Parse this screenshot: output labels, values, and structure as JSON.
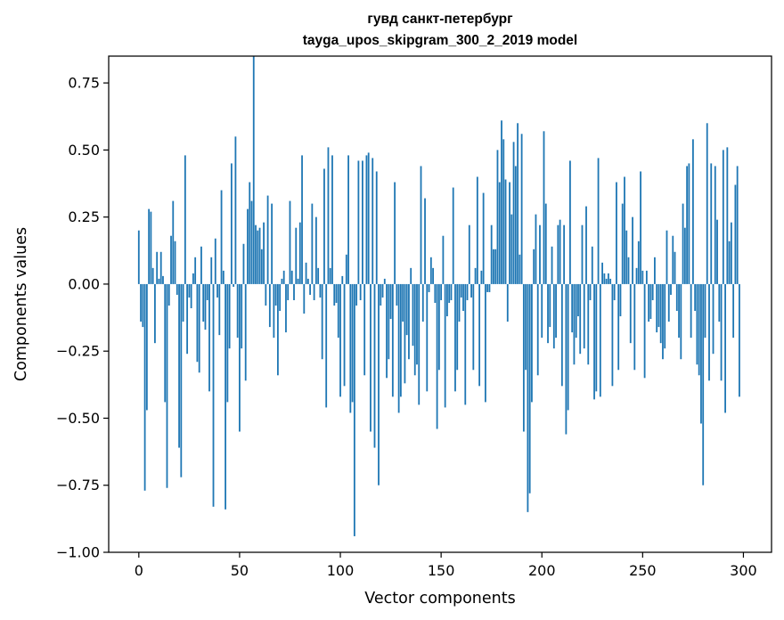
{
  "chart_data": {
    "type": "bar",
    "title_line1": "гувд санкт-петербург",
    "title_line2": "tayga_upos_skipgram_300_2_2019 model",
    "xlabel": "Vector components",
    "ylabel": "Components values",
    "xlim": [
      -14.95,
      313.95
    ],
    "ylim": [
      -1.0,
      0.85
    ],
    "x_ticks": [
      0,
      50,
      100,
      150,
      200,
      250,
      300
    ],
    "x_tick_labels": [
      "0",
      "50",
      "100",
      "150",
      "200",
      "250",
      "300"
    ],
    "y_ticks": [
      0.75,
      0.5,
      0.25,
      0.0,
      -0.25,
      -0.5,
      -0.75,
      -1.0
    ],
    "y_tick_labels": [
      "0.75",
      "0.50",
      "0.25",
      "0.00",
      "−0.25",
      "−0.50",
      "−0.75",
      "−1.00"
    ],
    "bar_color": "#1f77b4",
    "grid": false,
    "values": [
      0.2,
      -0.14,
      -0.16,
      -0.77,
      -0.47,
      0.28,
      0.27,
      0.06,
      -0.22,
      0.12,
      0.02,
      0.12,
      0.03,
      -0.44,
      -0.76,
      -0.08,
      0.18,
      0.31,
      0.16,
      -0.04,
      -0.61,
      -0.72,
      -0.14,
      0.48,
      -0.26,
      -0.05,
      -0.09,
      0.04,
      0.1,
      -0.29,
      -0.33,
      0.14,
      -0.14,
      -0.17,
      -0.06,
      -0.4,
      0.1,
      -0.83,
      0.17,
      -0.05,
      -0.19,
      0.35,
      0.05,
      -0.84,
      -0.44,
      -0.24,
      0.45,
      -0.01,
      0.55,
      -0.2,
      -0.55,
      -0.24,
      0.15,
      -0.36,
      0.28,
      0.38,
      0.31,
      0.85,
      0.22,
      0.2,
      0.21,
      0.13,
      0.23,
      -0.08,
      0.33,
      -0.16,
      0.3,
      -0.2,
      -0.08,
      -0.34,
      -0.1,
      0.02,
      0.05,
      -0.18,
      -0.06,
      0.31,
      0.05,
      -0.06,
      0.21,
      0.02,
      0.23,
      0.48,
      -0.11,
      0.08,
      0.02,
      -0.04,
      0.3,
      -0.06,
      0.25,
      0.06,
      -0.05,
      -0.28,
      0.43,
      -0.46,
      0.51,
      0.06,
      0.48,
      -0.08,
      -0.07,
      -0.2,
      -0.42,
      0.03,
      -0.38,
      0.11,
      0.48,
      -0.48,
      -0.44,
      -0.94,
      -0.08,
      0.46,
      -0.06,
      0.46,
      -0.34,
      0.48,
      0.49,
      -0.55,
      0.47,
      -0.61,
      0.42,
      -0.75,
      -0.08,
      -0.05,
      0.02,
      -0.35,
      -0.28,
      -0.13,
      -0.42,
      0.38,
      -0.08,
      -0.48,
      -0.42,
      -0.14,
      -0.37,
      -0.19,
      -0.28,
      0.06,
      -0.23,
      -0.34,
      -0.3,
      -0.45,
      0.44,
      -0.14,
      0.32,
      -0.4,
      -0.03,
      0.1,
      0.06,
      -0.07,
      -0.54,
      -0.32,
      -0.06,
      0.18,
      -0.46,
      -0.12,
      -0.07,
      -0.06,
      0.36,
      -0.4,
      -0.32,
      -0.14,
      -0.05,
      -0.1,
      -0.45,
      -0.06,
      0.22,
      -0.05,
      -0.32,
      0.06,
      0.4,
      -0.38,
      0.05,
      0.34,
      -0.44,
      -0.03,
      -0.03,
      0.22,
      0.13,
      0.13,
      0.5,
      0.38,
      0.61,
      0.54,
      0.39,
      -0.14,
      0.38,
      0.26,
      0.53,
      0.44,
      0.6,
      0.11,
      0.56,
      -0.55,
      -0.32,
      -0.85,
      -0.78,
      -0.44,
      0.13,
      0.26,
      -0.34,
      0.22,
      -0.2,
      0.57,
      0.3,
      -0.22,
      -0.16,
      0.14,
      -0.24,
      -0.2,
      0.22,
      0.24,
      -0.38,
      0.22,
      -0.56,
      -0.47,
      0.46,
      -0.18,
      -0.3,
      -0.2,
      -0.12,
      -0.26,
      0.22,
      -0.24,
      0.29,
      -0.3,
      -0.06,
      0.14,
      -0.43,
      -0.4,
      0.47,
      -0.42,
      0.08,
      0.04,
      0.02,
      0.04,
      0.02,
      -0.38,
      -0.06,
      0.38,
      -0.32,
      -0.12,
      0.3,
      0.4,
      0.2,
      0.1,
      -0.22,
      0.25,
      -0.32,
      0.06,
      0.16,
      0.42,
      0.05,
      -0.35,
      0.05,
      -0.14,
      -0.13,
      -0.06,
      0.1,
      -0.18,
      -0.16,
      -0.22,
      -0.28,
      -0.24,
      0.2,
      -0.14,
      -0.04,
      0.18,
      0.12,
      -0.1,
      -0.2,
      -0.28,
      0.3,
      0.21,
      0.44,
      0.45,
      -0.2,
      0.54,
      -0.1,
      -0.3,
      -0.34,
      -0.52,
      -0.75,
      -0.2,
      0.6,
      -0.36,
      0.45,
      -0.26,
      0.44,
      0.24,
      -0.14,
      -0.36,
      0.5,
      -0.48,
      0.51,
      0.16,
      0.23,
      -0.2,
      0.37,
      0.44,
      -0.42
    ]
  }
}
